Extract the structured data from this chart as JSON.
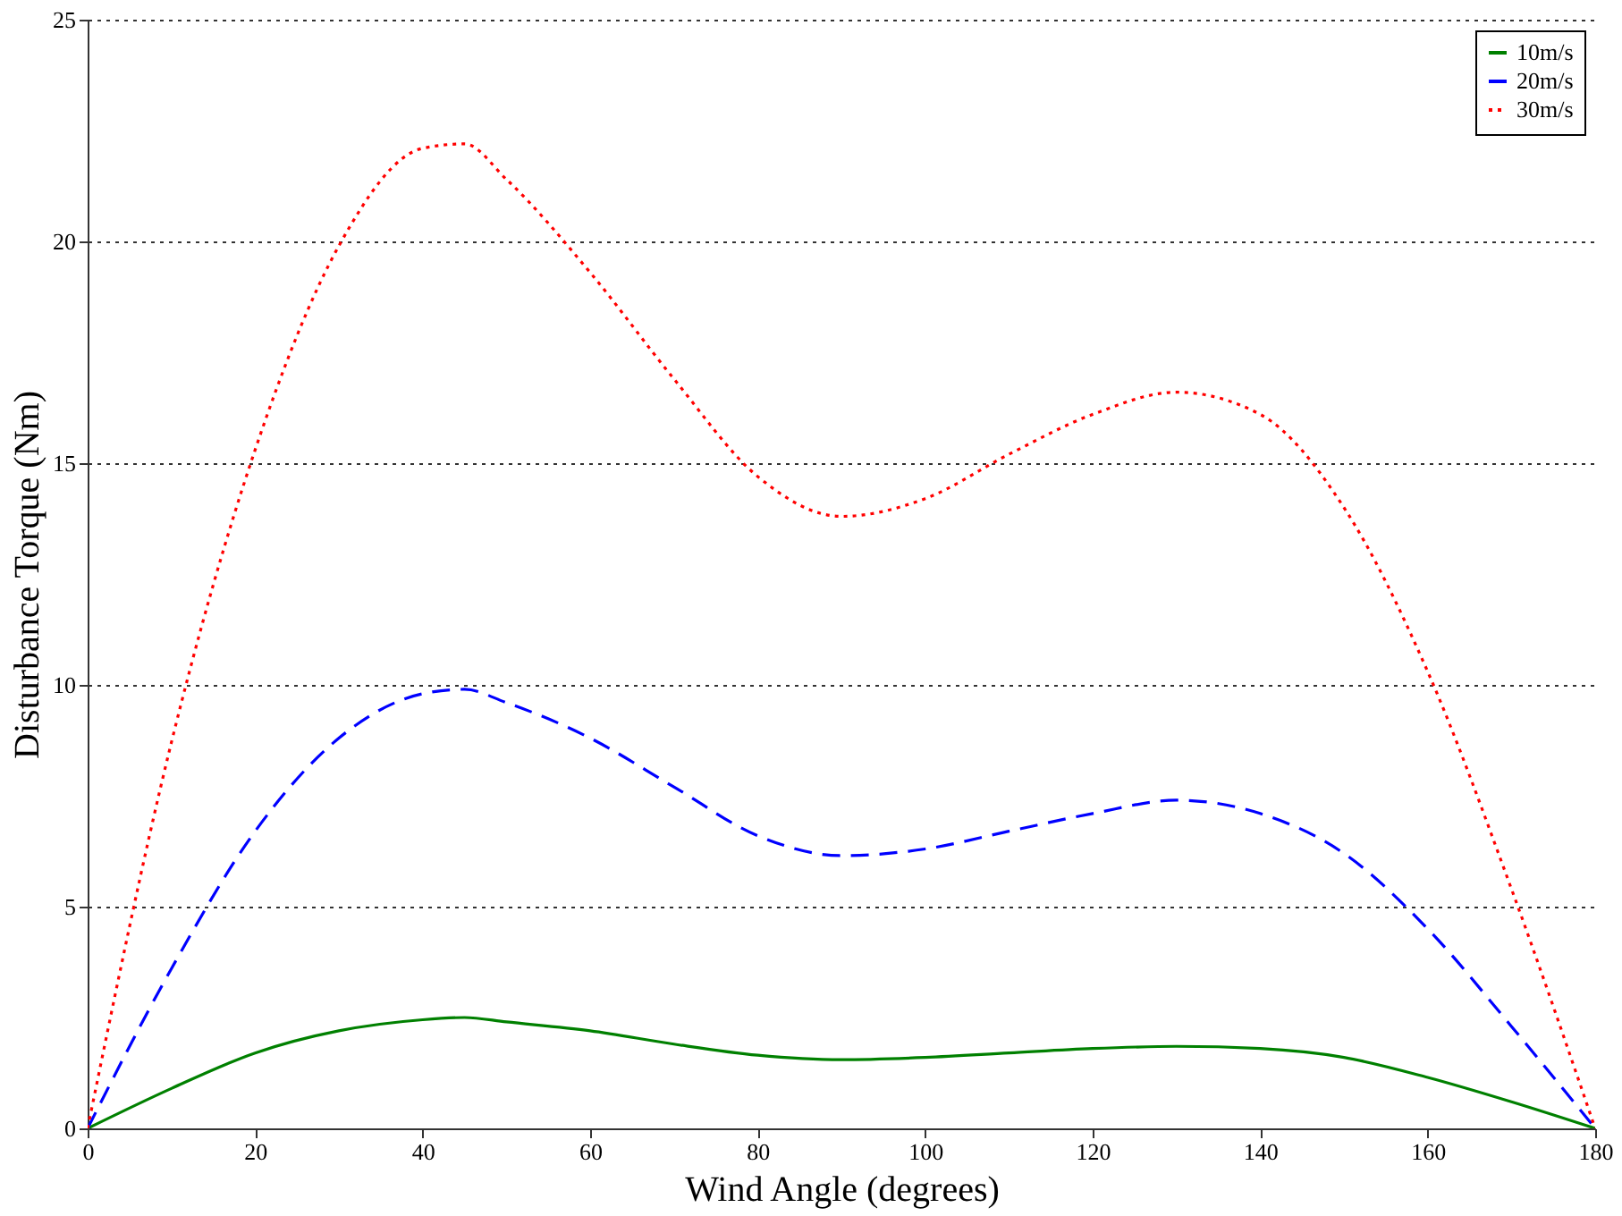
{
  "chart_data": {
    "type": "line",
    "xlabel": "Wind Angle (degrees)",
    "ylabel": "Disturbance Torque (Nm)",
    "xlim": [
      0,
      180
    ],
    "xticks": [
      0,
      20,
      40,
      60,
      80,
      100,
      120,
      140,
      160,
      180
    ],
    "ylim": [
      0,
      25
    ],
    "yticks": [
      0,
      5,
      10,
      15,
      20,
      25
    ],
    "grid": "y",
    "legend": "top right",
    "marker": "none",
    "x": [
      0,
      10,
      20,
      30,
      40,
      45,
      50,
      60,
      70,
      80,
      90,
      100,
      110,
      120,
      130,
      140,
      150,
      160,
      170,
      180
    ],
    "series": [
      {
        "name": "10m/s",
        "color": "#008000",
        "line_style": "solid",
        "values": [
          0,
          0.9,
          1.7,
          2.2,
          2.45,
          2.5,
          2.4,
          2.2,
          1.9,
          1.65,
          1.55,
          1.6,
          1.7,
          1.8,
          1.85,
          1.8,
          1.6,
          1.15,
          0.6,
          0
        ]
      },
      {
        "name": "20m/s",
        "color": "#0000ff",
        "line_style": "dashed",
        "values": [
          0,
          3.6,
          6.7,
          8.8,
          9.8,
          9.9,
          9.6,
          8.8,
          7.7,
          6.6,
          6.15,
          6.3,
          6.7,
          7.1,
          7.4,
          7.1,
          6.2,
          4.5,
          2.3,
          0
        ]
      },
      {
        "name": "30m/s",
        "color": "#ff0000",
        "line_style": "dotted",
        "values": [
          0,
          8.7,
          15.3,
          19.9,
          22.1,
          22.2,
          21.4,
          19.3,
          16.9,
          14.7,
          13.8,
          14.2,
          15.2,
          16.1,
          16.6,
          16.1,
          14.0,
          10.3,
          5.4,
          0
        ]
      }
    ]
  }
}
